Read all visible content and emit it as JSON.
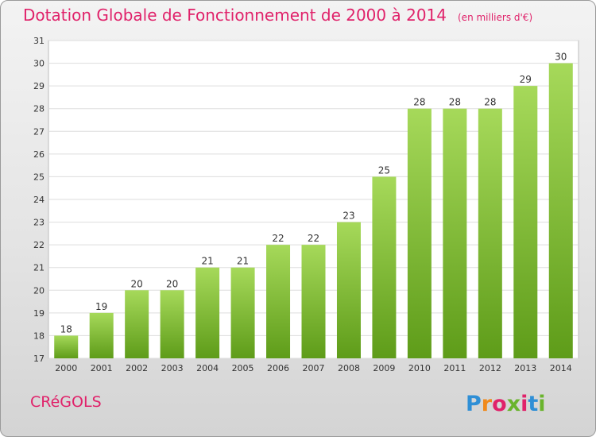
{
  "header": {
    "title": "Dotation Globale de Fonctionnement de 2000 à 2014",
    "subtitle": "(en milliers d'€)"
  },
  "commune": "CRéGOLS",
  "logo": {
    "text": "Proxiti",
    "colors": [
      "#2f8fd6",
      "#f08a1c",
      "#e0226a",
      "#6ab42d",
      "#e0226a",
      "#2f8fd6",
      "#6ab42d"
    ]
  },
  "colors": {
    "accent": "#e0226a",
    "bar_light": "#a6d95a",
    "bar_dark": "#5e9c19"
  },
  "chart_data": {
    "type": "bar",
    "title": "Dotation Globale de Fonctionnement de 2000 à 2014",
    "subtitle": "(en milliers d'€)",
    "categories": [
      "2000",
      "2001",
      "2002",
      "2003",
      "2004",
      "2005",
      "2006",
      "2007",
      "2008",
      "2009",
      "2010",
      "2011",
      "2012",
      "2013",
      "2014"
    ],
    "values": [
      18,
      19,
      20,
      20,
      21,
      21,
      22,
      22,
      23,
      25,
      28,
      28,
      28,
      29,
      30
    ],
    "yticks": [
      17,
      18,
      19,
      20,
      21,
      22,
      23,
      24,
      25,
      26,
      27,
      28,
      29,
      30,
      31
    ],
    "ylim": [
      17,
      31
    ],
    "grid": true,
    "xlabel": "",
    "ylabel": ""
  }
}
